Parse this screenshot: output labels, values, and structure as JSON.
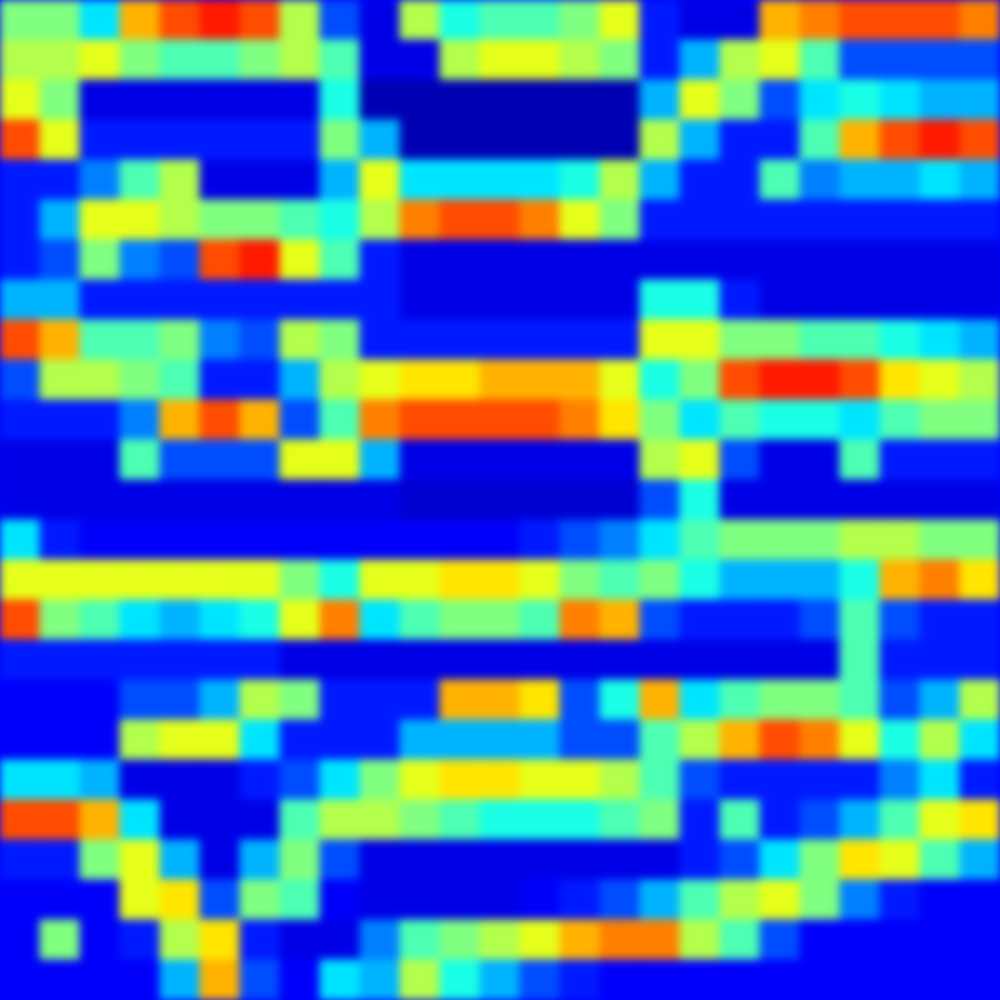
{
  "chart_data": {
    "type": "heatmap",
    "tick_labels": false,
    "xlim": [
      0,
      25
    ],
    "ylim": [
      0,
      25
    ],
    "zlim": [
      0,
      1
    ],
    "cells": [
      [
        0.5,
        0.5,
        0.35,
        0.7,
        0.8,
        0.85,
        0.8,
        0.55,
        0.2,
        0.1,
        0.55,
        0.4,
        0.45,
        0.45,
        0.5,
        0.6,
        0.15,
        0.1,
        0.1,
        0.7,
        0.75,
        0.8,
        0.8,
        0.8,
        0.75
      ],
      [
        0.55,
        0.55,
        0.6,
        0.5,
        0.45,
        0.45,
        0.5,
        0.55,
        0.45,
        0.1,
        0.1,
        0.55,
        0.6,
        0.6,
        0.55,
        0.5,
        0.15,
        0.3,
        0.55,
        0.6,
        0.45,
        0.2,
        0.2,
        0.2,
        0.2
      ],
      [
        0.6,
        0.5,
        0.1,
        0.1,
        0.1,
        0.1,
        0.1,
        0.1,
        0.4,
        0.05,
        0.05,
        0.05,
        0.05,
        0.05,
        0.05,
        0.05,
        0.3,
        0.6,
        0.5,
        0.2,
        0.35,
        0.4,
        0.35,
        0.3,
        0.3
      ],
      [
        0.8,
        0.6,
        0.15,
        0.15,
        0.15,
        0.15,
        0.15,
        0.15,
        0.5,
        0.3,
        0.05,
        0.05,
        0.05,
        0.05,
        0.05,
        0.05,
        0.55,
        0.3,
        0.15,
        0.15,
        0.45,
        0.7,
        0.8,
        0.85,
        0.8
      ],
      [
        0.15,
        0.15,
        0.25,
        0.45,
        0.55,
        0.1,
        0.1,
        0.1,
        0.3,
        0.6,
        0.35,
        0.35,
        0.35,
        0.35,
        0.4,
        0.55,
        0.3,
        0.15,
        0.15,
        0.45,
        0.25,
        0.3,
        0.3,
        0.35,
        0.3
      ],
      [
        0.15,
        0.3,
        0.6,
        0.6,
        0.55,
        0.5,
        0.5,
        0.45,
        0.4,
        0.55,
        0.75,
        0.8,
        0.8,
        0.75,
        0.6,
        0.5,
        0.15,
        0.15,
        0.15,
        0.15,
        0.15,
        0.15,
        0.15,
        0.15,
        0.15
      ],
      [
        0.15,
        0.2,
        0.5,
        0.25,
        0.2,
        0.8,
        0.85,
        0.6,
        0.45,
        0.15,
        0.1,
        0.1,
        0.1,
        0.1,
        0.1,
        0.1,
        0.1,
        0.1,
        0.1,
        0.1,
        0.1,
        0.1,
        0.1,
        0.1,
        0.1
      ],
      [
        0.3,
        0.3,
        0.15,
        0.15,
        0.15,
        0.15,
        0.15,
        0.15,
        0.15,
        0.15,
        0.1,
        0.1,
        0.1,
        0.1,
        0.1,
        0.1,
        0.4,
        0.4,
        0.15,
        0.1,
        0.1,
        0.1,
        0.1,
        0.1,
        0.1
      ],
      [
        0.8,
        0.7,
        0.45,
        0.45,
        0.5,
        0.25,
        0.2,
        0.55,
        0.5,
        0.15,
        0.15,
        0.15,
        0.15,
        0.15,
        0.15,
        0.15,
        0.6,
        0.6,
        0.5,
        0.5,
        0.45,
        0.45,
        0.4,
        0.35,
        0.3
      ],
      [
        0.2,
        0.55,
        0.55,
        0.5,
        0.45,
        0.15,
        0.15,
        0.3,
        0.55,
        0.6,
        0.65,
        0.65,
        0.7,
        0.7,
        0.7,
        0.6,
        0.4,
        0.5,
        0.8,
        0.85,
        0.85,
        0.8,
        0.65,
        0.6,
        0.55
      ],
      [
        0.15,
        0.15,
        0.15,
        0.25,
        0.7,
        0.8,
        0.7,
        0.2,
        0.45,
        0.75,
        0.8,
        0.8,
        0.8,
        0.8,
        0.75,
        0.65,
        0.5,
        0.35,
        0.45,
        0.4,
        0.4,
        0.35,
        0.45,
        0.5,
        0.5
      ],
      [
        0.1,
        0.1,
        0.1,
        0.45,
        0.2,
        0.2,
        0.2,
        0.6,
        0.6,
        0.3,
        0.1,
        0.1,
        0.1,
        0.1,
        0.1,
        0.1,
        0.55,
        0.6,
        0.2,
        0.1,
        0.1,
        0.45,
        0.15,
        0.15,
        0.15
      ],
      [
        0.1,
        0.1,
        0.1,
        0.1,
        0.1,
        0.1,
        0.1,
        0.1,
        0.1,
        0.1,
        0.08,
        0.08,
        0.08,
        0.08,
        0.08,
        0.08,
        0.2,
        0.4,
        0.1,
        0.1,
        0.1,
        0.1,
        0.1,
        0.1,
        0.1
      ],
      [
        0.35,
        0.15,
        0.12,
        0.12,
        0.12,
        0.12,
        0.12,
        0.12,
        0.12,
        0.12,
        0.12,
        0.12,
        0.12,
        0.15,
        0.2,
        0.25,
        0.35,
        0.45,
        0.5,
        0.5,
        0.5,
        0.55,
        0.55,
        0.5,
        0.5
      ],
      [
        0.6,
        0.6,
        0.6,
        0.6,
        0.6,
        0.6,
        0.6,
        0.5,
        0.4,
        0.6,
        0.6,
        0.65,
        0.65,
        0.6,
        0.5,
        0.45,
        0.5,
        0.4,
        0.3,
        0.3,
        0.3,
        0.4,
        0.7,
        0.75,
        0.65
      ],
      [
        0.8,
        0.5,
        0.45,
        0.35,
        0.3,
        0.35,
        0.4,
        0.6,
        0.75,
        0.35,
        0.45,
        0.5,
        0.5,
        0.45,
        0.75,
        0.7,
        0.2,
        0.15,
        0.15,
        0.15,
        0.2,
        0.45,
        0.2,
        0.15,
        0.15
      ],
      [
        0.15,
        0.15,
        0.15,
        0.15,
        0.15,
        0.15,
        0.15,
        0.1,
        0.1,
        0.1,
        0.1,
        0.1,
        0.1,
        0.1,
        0.1,
        0.1,
        0.1,
        0.1,
        0.1,
        0.1,
        0.1,
        0.45,
        0.15,
        0.15,
        0.15
      ],
      [
        0.12,
        0.12,
        0.12,
        0.2,
        0.2,
        0.3,
        0.55,
        0.5,
        0.15,
        0.15,
        0.15,
        0.7,
        0.7,
        0.65,
        0.2,
        0.4,
        0.7,
        0.35,
        0.45,
        0.5,
        0.5,
        0.45,
        0.2,
        0.3,
        0.55
      ],
      [
        0.12,
        0.12,
        0.12,
        0.55,
        0.6,
        0.6,
        0.35,
        0.15,
        0.15,
        0.15,
        0.3,
        0.3,
        0.3,
        0.3,
        0.2,
        0.2,
        0.45,
        0.55,
        0.7,
        0.8,
        0.75,
        0.6,
        0.4,
        0.55,
        0.35
      ],
      [
        0.35,
        0.35,
        0.3,
        0.1,
        0.1,
        0.1,
        0.15,
        0.2,
        0.35,
        0.5,
        0.6,
        0.65,
        0.65,
        0.6,
        0.6,
        0.55,
        0.45,
        0.2,
        0.15,
        0.15,
        0.15,
        0.15,
        0.25,
        0.35,
        0.15
      ],
      [
        0.8,
        0.8,
        0.7,
        0.35,
        0.1,
        0.1,
        0.1,
        0.45,
        0.55,
        0.55,
        0.5,
        0.45,
        0.4,
        0.4,
        0.4,
        0.45,
        0.5,
        0.15,
        0.45,
        0.15,
        0.2,
        0.3,
        0.45,
        0.6,
        0.65
      ],
      [
        0.15,
        0.15,
        0.5,
        0.6,
        0.3,
        0.1,
        0.3,
        0.5,
        0.2,
        0.1,
        0.1,
        0.1,
        0.1,
        0.1,
        0.1,
        0.1,
        0.1,
        0.15,
        0.2,
        0.35,
        0.5,
        0.65,
        0.6,
        0.45,
        0.3
      ],
      [
        0.12,
        0.12,
        0.12,
        0.6,
        0.65,
        0.2,
        0.5,
        0.45,
        0.12,
        0.1,
        0.1,
        0.1,
        0.1,
        0.12,
        0.15,
        0.2,
        0.3,
        0.45,
        0.55,
        0.6,
        0.5,
        0.25,
        0.15,
        0.12,
        0.12
      ],
      [
        0.12,
        0.5,
        0.12,
        0.15,
        0.55,
        0.65,
        0.15,
        0.1,
        0.1,
        0.25,
        0.45,
        0.5,
        0.55,
        0.6,
        0.7,
        0.75,
        0.75,
        0.55,
        0.45,
        0.2,
        0.12,
        0.12,
        0.12,
        0.12,
        0.12
      ],
      [
        0.12,
        0.12,
        0.12,
        0.12,
        0.3,
        0.7,
        0.2,
        0.12,
        0.35,
        0.3,
        0.55,
        0.4,
        0.3,
        0.2,
        0.15,
        0.12,
        0.12,
        0.12,
        0.12,
        0.12,
        0.12,
        0.12,
        0.12,
        0.12,
        0.12
      ]
    ]
  }
}
